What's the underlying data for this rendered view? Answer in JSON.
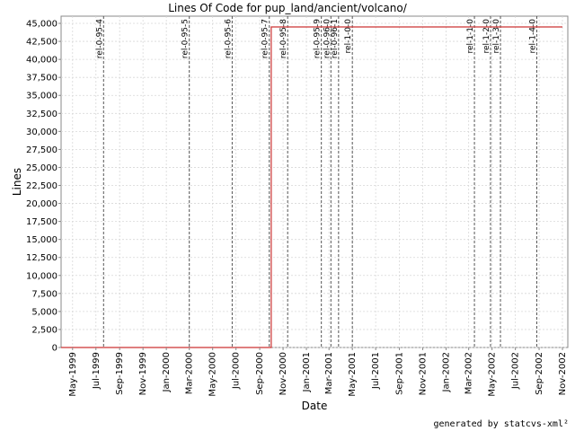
{
  "chart_data": {
    "type": "line",
    "title": "Lines Of Code for pup_land/ancient/volcano/",
    "xlabel": "Date",
    "ylabel": "Lines",
    "x_range": [
      "1999-04-01",
      "2002-11-15"
    ],
    "ylim": [
      0,
      46000
    ],
    "y_ticks": [
      0,
      2500,
      5000,
      7500,
      10000,
      12500,
      15000,
      17500,
      20000,
      22500,
      25000,
      27500,
      30000,
      32500,
      35000,
      37500,
      40000,
      42500,
      45000
    ],
    "y_tick_labels": [
      "0",
      "2,500",
      "5,000",
      "7,500",
      "10,000",
      "12,500",
      "15,000",
      "17,500",
      "20,000",
      "22,500",
      "25,000",
      "27,500",
      "30,000",
      "32,500",
      "35,000",
      "37,500",
      "40,000",
      "42,500",
      "45,000"
    ],
    "x_ticks": [
      {
        "date": "1999-05-01",
        "label": "May-1999"
      },
      {
        "date": "1999-07-01",
        "label": "Jul-1999"
      },
      {
        "date": "1999-09-01",
        "label": "Sep-1999"
      },
      {
        "date": "1999-11-01",
        "label": "Nov-1999"
      },
      {
        "date": "2000-01-01",
        "label": "Jan-2000"
      },
      {
        "date": "2000-03-01",
        "label": "Mar-2000"
      },
      {
        "date": "2000-05-01",
        "label": "May-2000"
      },
      {
        "date": "2000-07-01",
        "label": "Jul-2000"
      },
      {
        "date": "2000-09-01",
        "label": "Sep-2000"
      },
      {
        "date": "2000-11-01",
        "label": "Nov-2000"
      },
      {
        "date": "2001-01-01",
        "label": "Jan-2001"
      },
      {
        "date": "2001-03-01",
        "label": "Mar-2001"
      },
      {
        "date": "2001-05-01",
        "label": "May-2001"
      },
      {
        "date": "2001-07-01",
        "label": "Jul-2001"
      },
      {
        "date": "2001-09-01",
        "label": "Sep-2001"
      },
      {
        "date": "2001-11-01",
        "label": "Nov-2001"
      },
      {
        "date": "2002-01-01",
        "label": "Jan-2002"
      },
      {
        "date": "2002-03-01",
        "label": "Mar-2002"
      },
      {
        "date": "2002-05-01",
        "label": "May-2002"
      },
      {
        "date": "2002-07-01",
        "label": "Jul-2002"
      },
      {
        "date": "2002-09-01",
        "label": "Sep-2002"
      },
      {
        "date": "2002-11-01",
        "label": "Nov-2002"
      }
    ],
    "grid": true,
    "series": [
      {
        "color": "#cc3333",
        "points": [
          {
            "x": "1999-04-01",
            "y": 0
          },
          {
            "x": "2000-10-01",
            "y": 0
          },
          {
            "x": "2000-10-01",
            "y": 44500
          },
          {
            "x": "2002-11-01",
            "y": 44500
          }
        ]
      }
    ],
    "markers": [
      {
        "date": "1999-07-21",
        "label": "rel-0-95-4"
      },
      {
        "date": "2000-03-01",
        "label": "rel-0-95-5"
      },
      {
        "date": "2000-06-21",
        "label": "rel-0-95-6"
      },
      {
        "date": "2000-09-26",
        "label": "rel-0-95-7"
      },
      {
        "date": "2000-11-13",
        "label": "rel-0-95-8"
      },
      {
        "date": "2001-02-09",
        "label": "rel-0-95-9"
      },
      {
        "date": "2001-03-06",
        "label": "rel-0-96-0"
      },
      {
        "date": "2001-03-26",
        "label": "rel-0-96-1"
      },
      {
        "date": "2001-05-01",
        "label": "rel-1-0-0"
      },
      {
        "date": "2002-03-16",
        "label": "rel-1-1-0"
      },
      {
        "date": "2002-04-27",
        "label": "rel-1-2-0"
      },
      {
        "date": "2002-05-23",
        "label": "rel-1-3-0"
      },
      {
        "date": "2002-08-26",
        "label": "rel-1-4-0"
      }
    ],
    "footer": "generated by statcvs-xml²",
    "colors": {
      "line": "#cc3333",
      "marker": "#555555",
      "grid": "#d8d8d8",
      "axis": "#888888"
    }
  }
}
